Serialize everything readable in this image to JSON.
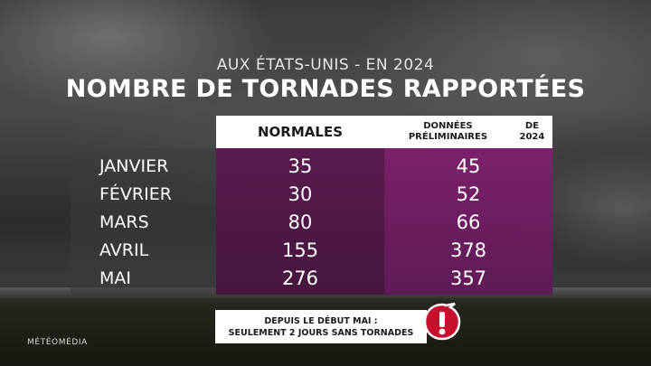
{
  "subtitle": "AUX ÉTATS-UNIS - EN 2024",
  "title": "NOMBRE DE TORNADES RAPPORTÉES",
  "table": {
    "columns": [
      "NORMALES",
      [
        "DONNÉES PRÉLIMINAIRES",
        "DE 2024"
      ]
    ],
    "rows": [
      {
        "month": "JANVIER",
        "normales": "35",
        "donnees_2024": "45"
      },
      {
        "month": "FÉVRIER",
        "normales": "30",
        "donnees_2024": "52"
      },
      {
        "month": "MARS",
        "normales": "80",
        "donnees_2024": "66"
      },
      {
        "month": "AVRIL",
        "normales": "155",
        "donnees_2024": "378"
      },
      {
        "month": "MAI",
        "normales": "276",
        "donnees_2024": "357"
      }
    ]
  },
  "note": {
    "line1": "DEPUIS LE DÉBUT MAI :",
    "line2": "SEULEMENT 2 JOURS SANS TORNADES",
    "icon": "exclamation-icon",
    "icon_color": "#c8102e"
  },
  "logo": "MÉTÉOMÉDIA",
  "colors": {
    "normales_column": "#5c1850",
    "donnees_column": "#801e6e",
    "header_bg": "#ffffff"
  }
}
